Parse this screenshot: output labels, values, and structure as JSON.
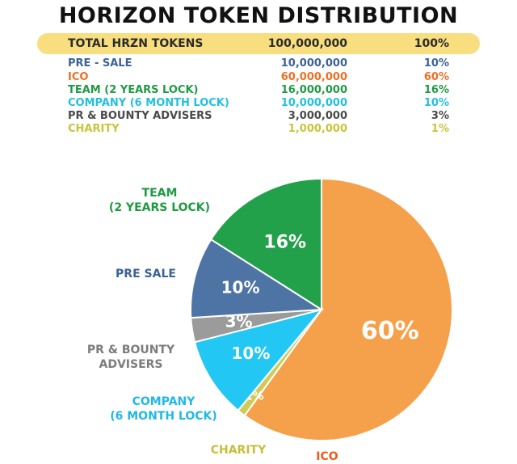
{
  "title": "HORIZON TOKEN DISTRIBUTION",
  "total": {
    "label": "TOTAL HRZN TOKENS",
    "amount": "100,000,000",
    "pct": "100%"
  },
  "rows": [
    {
      "label": "PRE - SALE",
      "amount": "10,000,000",
      "pct": "10%",
      "color": "#3d6296"
    },
    {
      "label": "ICO",
      "amount": "60,000,000",
      "pct": "60%",
      "color": "#ef6f22"
    },
    {
      "label": "TEAM (2 YEARS LOCK)",
      "amount": "16,000,000",
      "pct": "16%",
      "color": "#209a45"
    },
    {
      "label": "COMPANY (6 MONTH LOCK)",
      "amount": "10,000,000",
      "pct": "10%",
      "color": "#23bfe0"
    },
    {
      "label": "PR & BOUNTY ADVISERS",
      "amount": "3,000,000",
      "pct": "3%",
      "color": "#4a4a4a"
    },
    {
      "label": "CHARITY",
      "amount": "1,000,000",
      "pct": "1%",
      "color": "#c9c43a"
    }
  ],
  "chart_data": {
    "type": "pie",
    "slices": [
      {
        "label": "ICO",
        "value": 60,
        "text": "60%",
        "color": "#f5a14c",
        "label_color": "#ef5a1e"
      },
      {
        "label": "CHARITY",
        "value": 1,
        "text": "1%",
        "color": "#cfcb55",
        "label_color": "#c5bf3a"
      },
      {
        "label": "COMPANY (6 MONTH LOCK)",
        "value": 10,
        "text": "10%",
        "color": "#22c7f3",
        "label_color": "#20b8e8"
      },
      {
        "label": "PR & BOUNTY ADVISERS",
        "value": 3,
        "text": "3%",
        "color": "#9b9b9b",
        "label_color": "#7c7c7c"
      },
      {
        "label": "PRE SALE",
        "value": 10,
        "text": "10%",
        "color": "#4e74a5",
        "label_color": "#3d6296"
      },
      {
        "label": "TEAM (2 YEARS LOCK)",
        "value": 16,
        "text": "16%",
        "color": "#23a04a",
        "label_color": "#1f9a42"
      }
    ],
    "external_labels": [
      {
        "lines": [
          "TEAM",
          "(2 YEARS LOCK)"
        ],
        "color": "#1f9a42"
      },
      {
        "lines": [
          "PRE SALE"
        ],
        "color": "#3d6296"
      },
      {
        "lines": [
          "PR & BOUNTY",
          "ADVISERS"
        ],
        "color": "#7c7c7c"
      },
      {
        "lines": [
          "COMPANY",
          "(6 MONTH LOCK)"
        ],
        "color": "#20b8e8"
      },
      {
        "lines": [
          "CHARITY"
        ],
        "color": "#c5bf3a"
      },
      {
        "lines": [
          "ICO"
        ],
        "color": "#ef5a1e"
      }
    ]
  }
}
